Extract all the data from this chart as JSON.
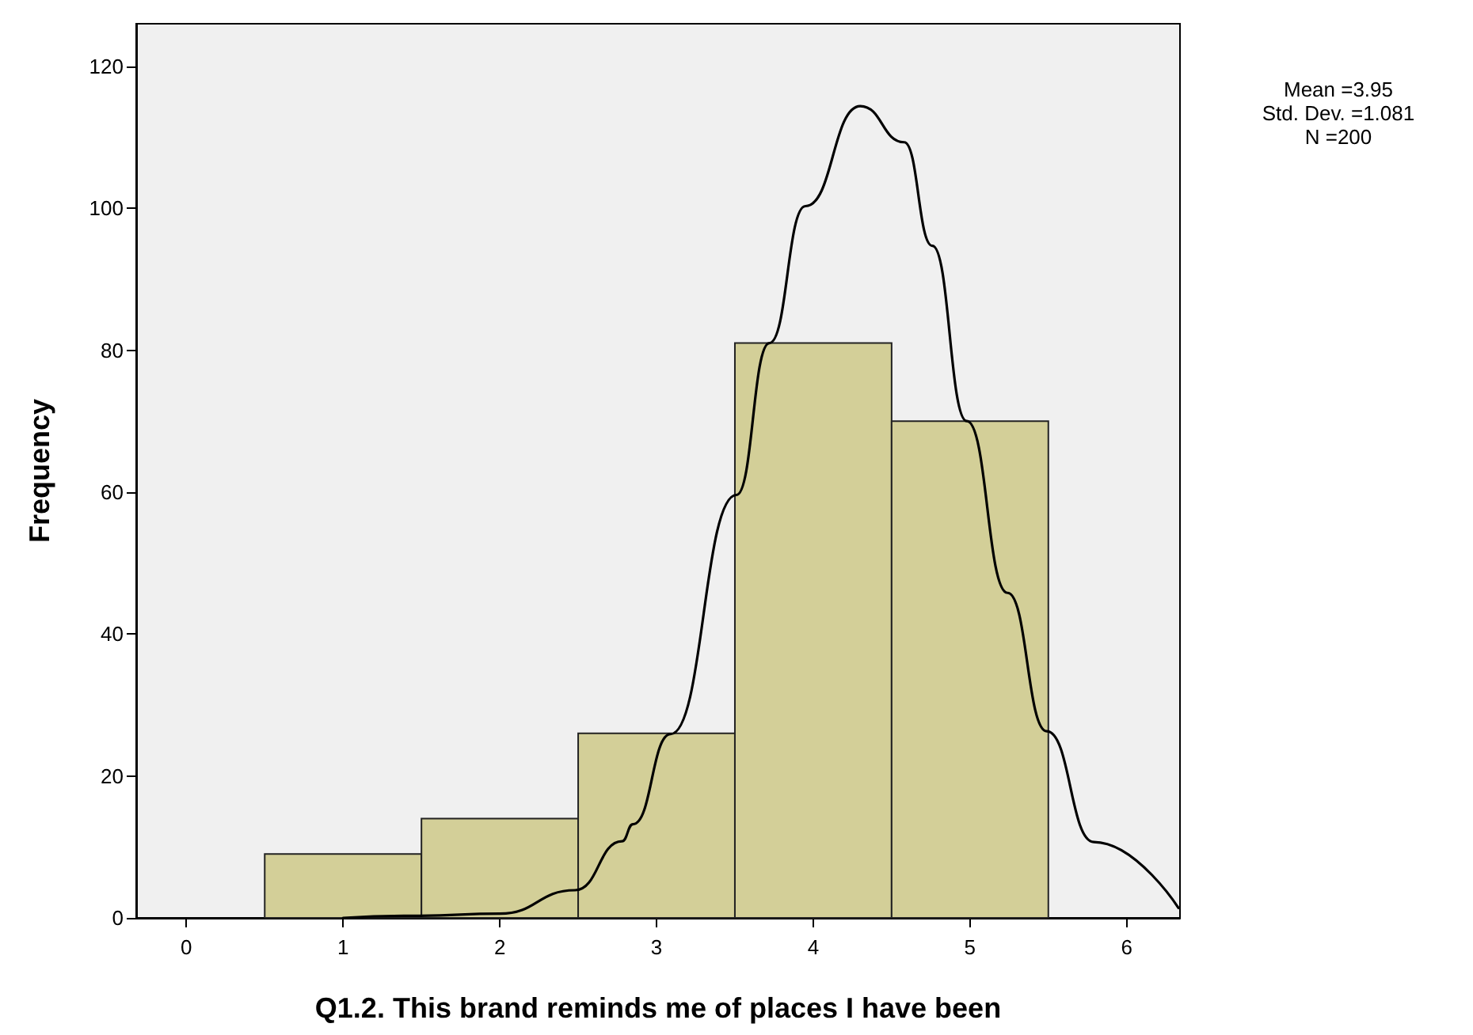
{
  "chart_data": {
    "type": "histogram",
    "xlabel": "Q1.2. This brand reminds me of places I have been",
    "ylabel": "Frequency",
    "bins": [
      0.5,
      1.5,
      2.5,
      3.5,
      4.5,
      5.5
    ],
    "values": [
      9,
      14,
      26,
      81,
      70
    ],
    "color": "#d3cf98",
    "series": [
      {
        "type": "line",
        "color": "#000000",
        "x": [
          1.0,
          1.49,
          2.0,
          2.48,
          2.78,
          2.85,
          3.09,
          3.51,
          3.72,
          3.95,
          4.3,
          4.58,
          4.76,
          4.98,
          5.24,
          5.49,
          5.79,
          6.33
        ],
        "values": [
          0,
          0.3,
          0.6,
          3.9,
          10.8,
          13.2,
          25.9,
          59.6,
          81,
          100.3,
          114.4,
          109.3,
          94.7,
          70,
          45.8,
          26.3,
          10.7,
          1.4
        ]
      }
    ],
    "xlim": [
      -0.32,
      6.34
    ],
    "xticks": [
      0,
      1,
      2,
      3,
      4,
      5,
      6
    ],
    "ylim": [
      0,
      126
    ],
    "yticks": [
      0,
      20,
      40,
      60,
      80,
      100,
      120
    ],
    "grid": false,
    "marker": "none",
    "line_style": "solid",
    "annotations": [
      "Mean =3.95",
      "Std. Dev. =1.081",
      "N =200"
    ]
  }
}
